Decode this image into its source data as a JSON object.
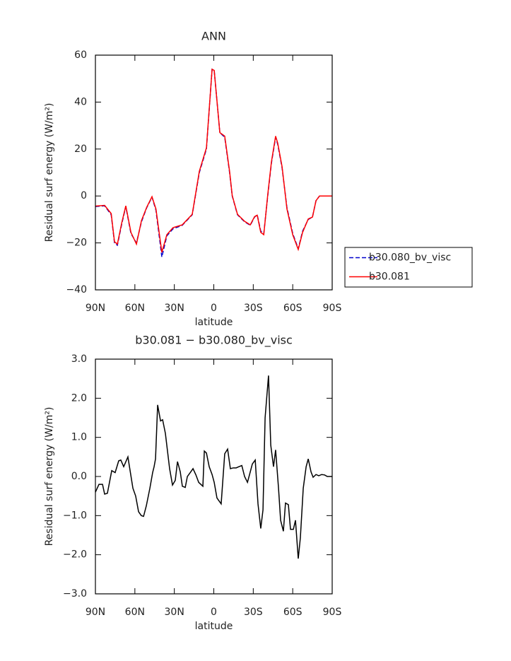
{
  "chart_data": [
    {
      "type": "line",
      "title": "ANN",
      "xlabel": "latitude",
      "ylabel": "Residual surf energy (W/m²)",
      "x": [
        90,
        83,
        78,
        75.5,
        73.3,
        70,
        66.9,
        63,
        58.8,
        55,
        51,
        47,
        44,
        39.5,
        35.7,
        31,
        24,
        16.4,
        11,
        5.6,
        1.3,
        -0.3,
        -4.6,
        -8.3,
        -12,
        -14,
        -18,
        -23.4,
        -27.7,
        -31,
        -33,
        -35.7,
        -38,
        -41,
        -43.8,
        -47,
        -48.6,
        -51.9,
        -55.6,
        -60,
        -64.2,
        -67.5,
        -71.8,
        -75,
        -77.7,
        -80.4,
        -90
      ],
      "series": [
        {
          "name": "b30.080_bv_visc",
          "color": "#0000cc",
          "linestyle": "dashed",
          "values": [
            -4.5,
            -4.2,
            -8,
            -20,
            -21,
            -12,
            -4.5,
            -16,
            -20,
            -11,
            -5,
            -0.5,
            -6,
            -26,
            -17,
            -14,
            -12.5,
            -8,
            10,
            20,
            54,
            53.5,
            27,
            25,
            10,
            0,
            -8,
            -11,
            -12.5,
            -9,
            -8,
            -15,
            -16,
            0,
            14,
            25,
            22,
            12,
            -5,
            -16,
            -22.5,
            -15,
            -10,
            -9,
            -2,
            0,
            0
          ]
        },
        {
          "name": "b30.081",
          "color": "#ff0000",
          "linestyle": "solid",
          "values": [
            -4.3,
            -4,
            -7.5,
            -19.5,
            -20.5,
            -11.5,
            -4.2,
            -15.5,
            -20.5,
            -10.5,
            -4.8,
            -0.3,
            -5.5,
            -24,
            -16.5,
            -13.5,
            -12.3,
            -7.8,
            10.5,
            20.5,
            54,
            53.5,
            27,
            25.5,
            10.5,
            0.2,
            -7.8,
            -10.8,
            -12.3,
            -8.8,
            -8.2,
            -15.5,
            -16.5,
            0.5,
            14.5,
            25.5,
            22.5,
            12.5,
            -5.5,
            -16.5,
            -22.8,
            -15.5,
            -9.8,
            -9,
            -2,
            0,
            0
          ]
        }
      ],
      "xlim": [
        90,
        -90
      ],
      "xticks": [
        {
          "value": 90,
          "label": "90N"
        },
        {
          "value": 60,
          "label": "60N"
        },
        {
          "value": 30,
          "label": "30N"
        },
        0,
        {
          "value": -30,
          "label": "30S"
        },
        {
          "value": -60,
          "label": "60S"
        },
        {
          "value": -90,
          "label": "90S"
        }
      ],
      "ylim": [
        -40,
        60
      ],
      "yticks": [
        {
          "value": -40,
          "label": "−40"
        },
        {
          "value": -20,
          "label": "−20"
        },
        0,
        20,
        40,
        60
      ],
      "legend": "right"
    },
    {
      "type": "line",
      "title": "b30.081 − b30.080_bv_visc",
      "xlabel": "latitude",
      "ylabel": "Residual surf energy (W/m²)",
      "x": [
        90,
        87.3,
        84.6,
        83,
        80.9,
        79.3,
        77.6,
        75,
        72.3,
        70.7,
        68.5,
        65.3,
        61.5,
        59.4,
        57.2,
        55.1,
        53.4,
        51.3,
        48.6,
        46.5,
        45.4,
        44.3,
        42.7,
        40.5,
        38.9,
        36.8,
        33.6,
        31.4,
        29.3,
        27.6,
        25.5,
        23.9,
        21.7,
        20.1,
        17.9,
        15.8,
        13.6,
        11.5,
        8.3,
        7.2,
        5.6,
        3.5,
        1.3,
        -0.3,
        -2.4,
        -5.6,
        -8.3,
        -10.5,
        -12.6,
        -14.8,
        -17,
        -19,
        -21.3,
        -23.4,
        -25.6,
        -27.2,
        -29.3,
        -31.5,
        -33.6,
        -35.7,
        -37.4,
        -39,
        -41.6,
        -43.3,
        -45.4,
        -47,
        -49.2,
        -50.8,
        -52.9,
        -54.5,
        -56.7,
        -58.3,
        -60.5,
        -62.1,
        -64.2,
        -65.8,
        -68,
        -70.2,
        -71.8,
        -73.9,
        -75.5,
        -77.7,
        -79.8,
        -82,
        -84.2,
        -86.3,
        -90
      ],
      "series": [
        {
          "name": "b30.081 − b30.080_bv_visc",
          "color": "#000000",
          "linestyle": "solid",
          "values": [
            -0.4,
            -0.2,
            -0.2,
            -0.45,
            -0.43,
            -0.15,
            0.15,
            0.1,
            0.4,
            0.42,
            0.25,
            0.5,
            -0.3,
            -0.5,
            -0.9,
            -1.0,
            -1.02,
            -0.75,
            -0.3,
            0.1,
            0.25,
            0.45,
            1.83,
            1.42,
            1.45,
            1.1,
            0.2,
            -0.22,
            -0.1,
            0.38,
            0.12,
            -0.25,
            -0.28,
            0,
            0.1,
            0.2,
            0.04,
            -0.15,
            -0.25,
            0.65,
            0.6,
            0.25,
            0.05,
            -0.15,
            -0.55,
            -0.7,
            0.58,
            0.7,
            0.2,
            0.22,
            0.22,
            0.25,
            0.28,
            0,
            -0.15,
            0.05,
            0.32,
            0.42,
            -0.7,
            -1.33,
            -0.85,
            1.5,
            2.58,
            0.8,
            0.25,
            0.68,
            -0.3,
            -1.12,
            -1.4,
            -0.68,
            -0.72,
            -1.35,
            -1.35,
            -1.12,
            -2.1,
            -1.57,
            -0.3,
            0.25,
            0.45,
            0.12,
            -0.02,
            0.05,
            0.02,
            0.05,
            0.04,
            0,
            0
          ]
        }
      ],
      "xlim": [
        90,
        -90
      ],
      "xticks": [
        {
          "value": 90,
          "label": "90N"
        },
        {
          "value": 60,
          "label": "60N"
        },
        {
          "value": 30,
          "label": "30N"
        },
        0,
        {
          "value": -30,
          "label": "30S"
        },
        {
          "value": -60,
          "label": "60S"
        },
        {
          "value": -90,
          "label": "90S"
        }
      ],
      "ylim": [
        -3,
        3
      ],
      "yticks": [
        {
          "value": -3,
          "label": "−3.0"
        },
        {
          "value": -2,
          "label": "−2.0"
        },
        {
          "value": -1,
          "label": "−1.0"
        },
        {
          "value": 0,
          "label": "0.0"
        },
        {
          "value": 1,
          "label": "1.0"
        },
        {
          "value": 2,
          "label": "2.0"
        },
        {
          "value": 3,
          "label": "3.0"
        }
      ]
    }
  ]
}
